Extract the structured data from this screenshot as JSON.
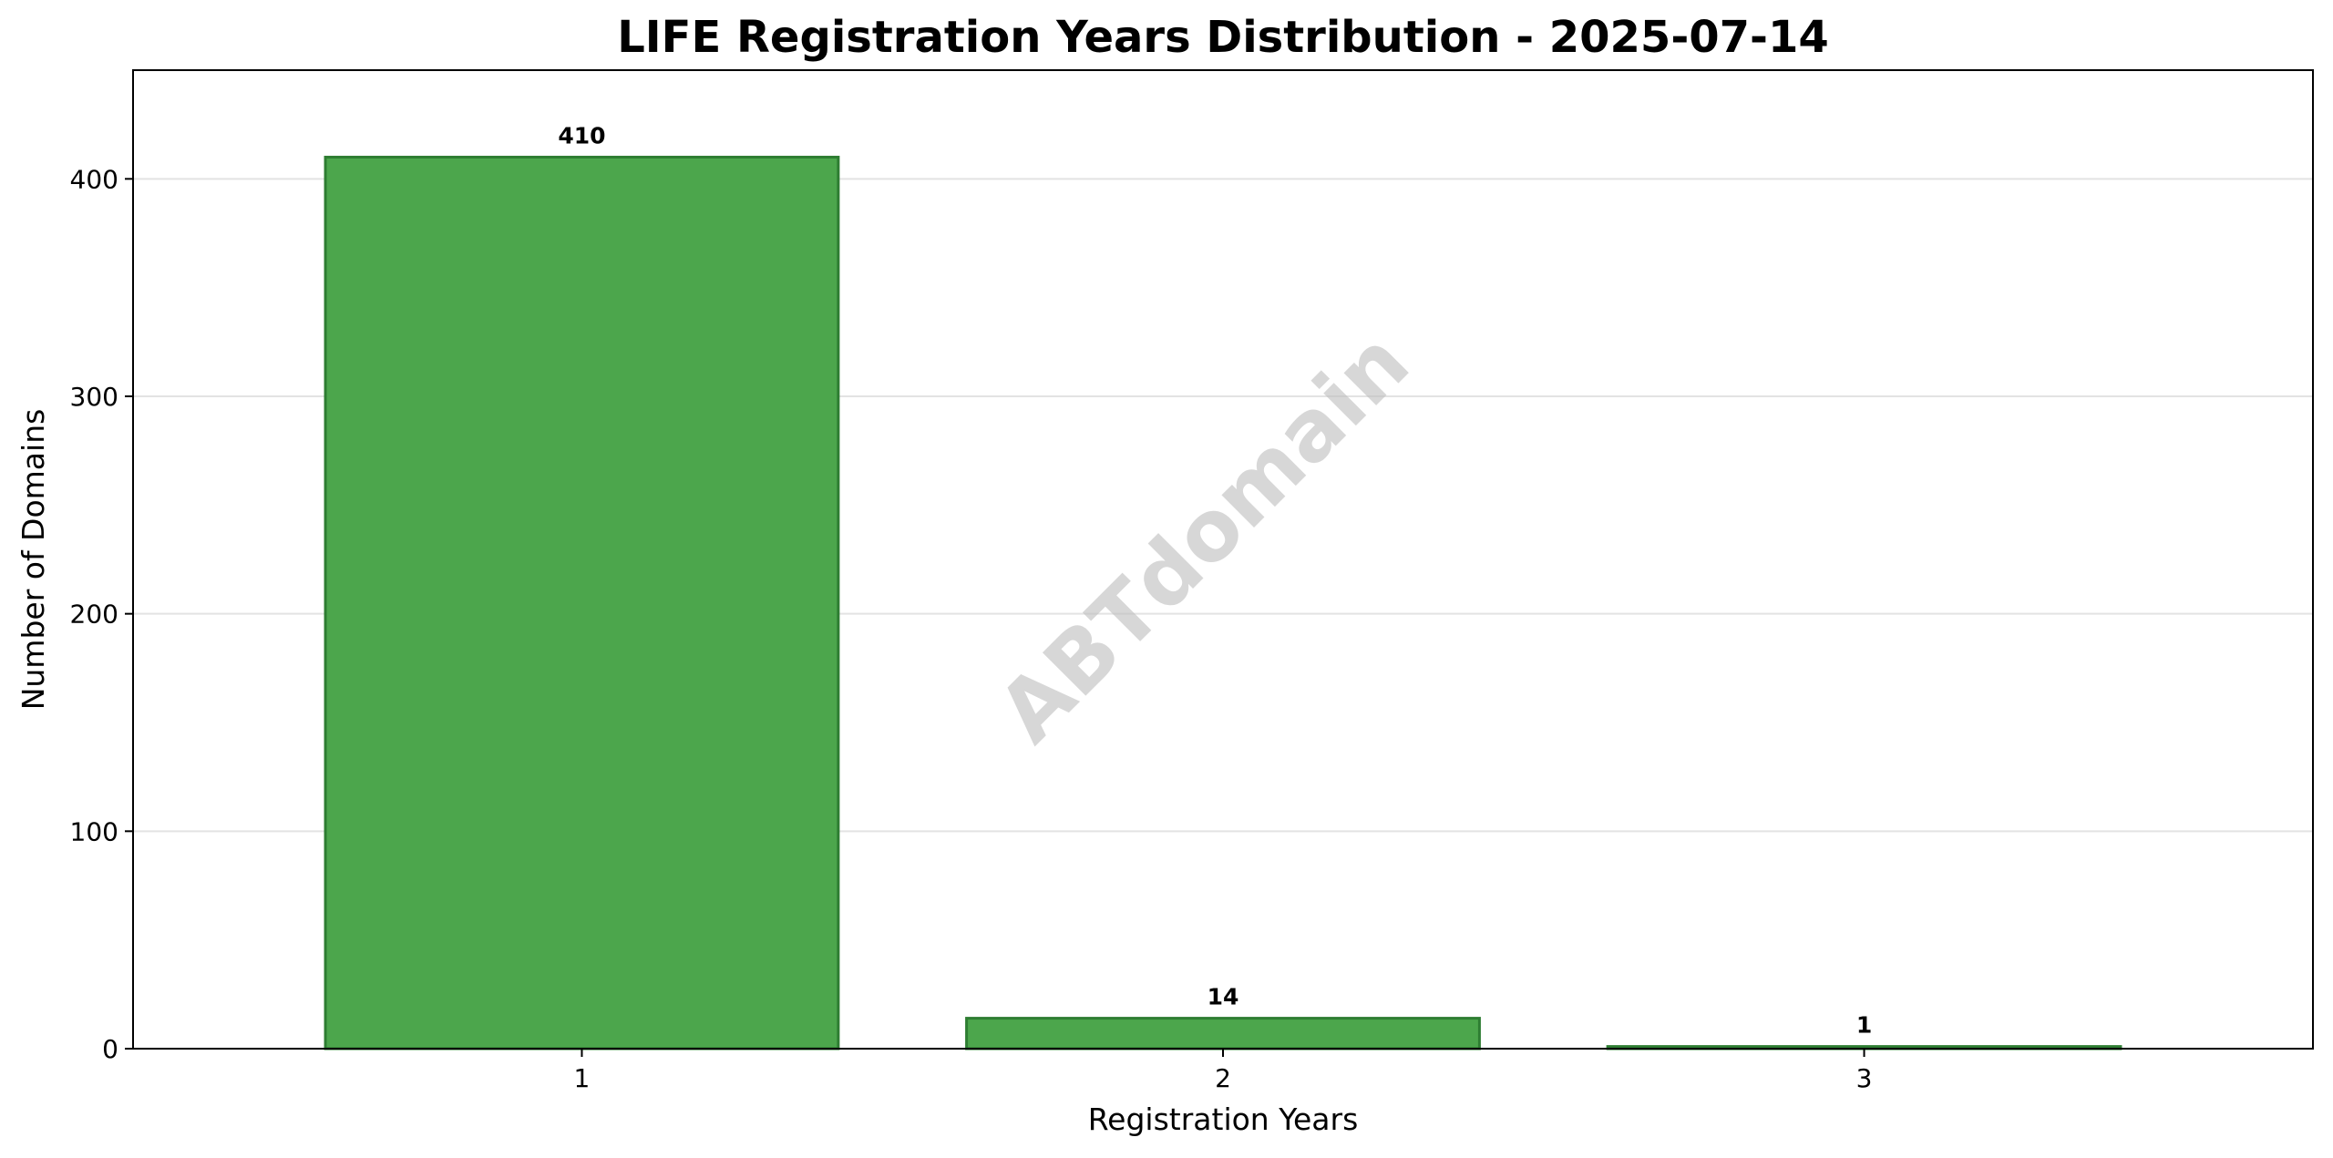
{
  "chart_data": {
    "type": "bar",
    "title": "LIFE Registration Years Distribution - 2025-07-14",
    "xlabel": "Registration Years",
    "ylabel": "Number of Domains",
    "categories": [
      "1",
      "2",
      "3"
    ],
    "values": [
      410,
      14,
      1
    ],
    "data_labels": [
      "410",
      "14",
      "1"
    ],
    "ylim": [
      0,
      450
    ],
    "yticks": [
      0,
      100,
      200,
      300,
      400
    ],
    "ytick_labels": [
      "0",
      "100",
      "200",
      "300",
      "400"
    ],
    "grid": "horizontal",
    "bar_color": "#4ca64c",
    "bar_edge_color": "#2e7d32",
    "watermark": "ABTdomain"
  }
}
